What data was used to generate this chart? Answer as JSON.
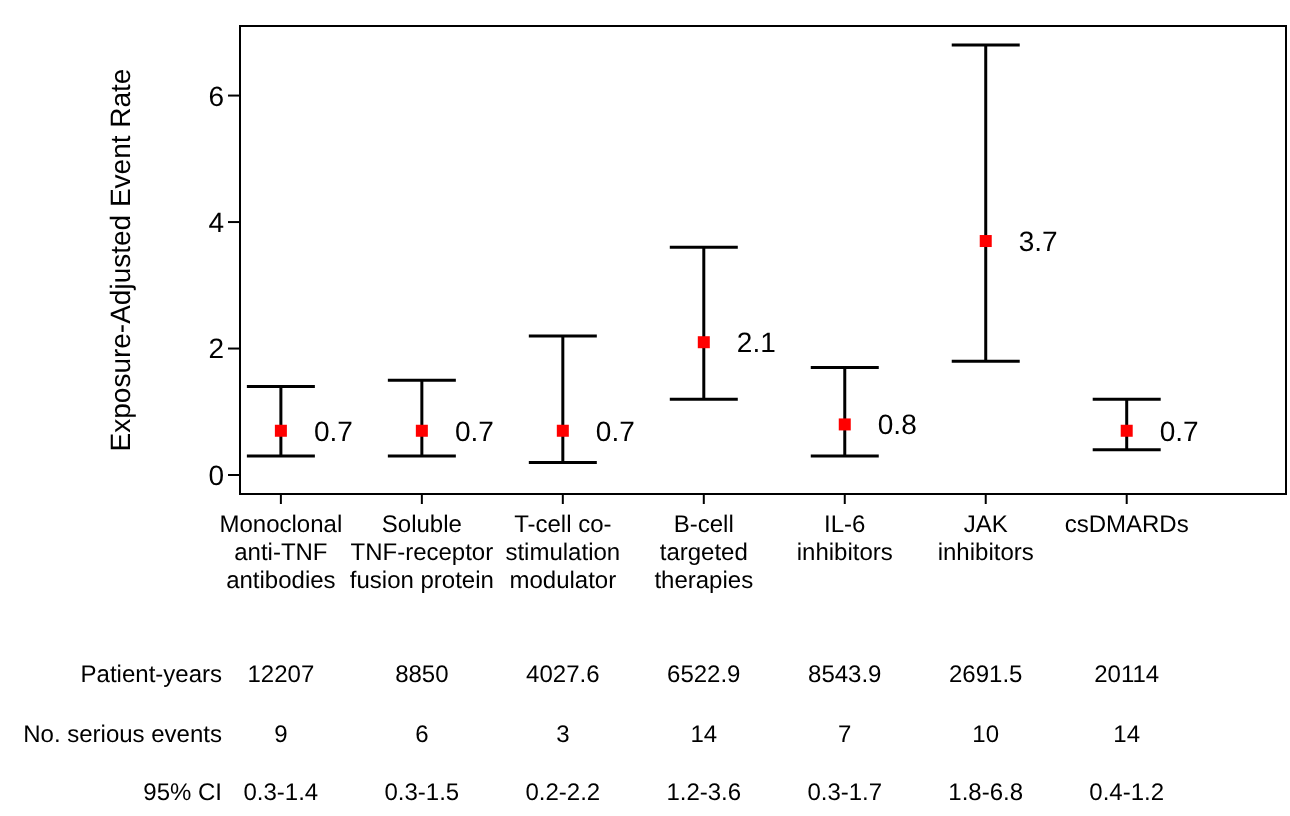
{
  "chart_data": {
    "type": "scatter",
    "ylabel": "Exposure-Adjusted Event Rate",
    "categories": [
      "Monoclonal\nanti-TNF\nantibodies",
      "Soluble\nTNF-receptor\nfusion protein",
      "T-cell co-\nstimulation\nmodulator",
      "B-cell\ntargeted\ntherapies",
      "IL-6\ninhibitors",
      "JAK\ninhibitors",
      "csDMARDs"
    ],
    "series": [
      {
        "color": "#ff0000",
        "values": [
          0.7,
          0.7,
          0.7,
          2.1,
          0.8,
          3.7,
          0.7
        ],
        "errors": [
          [
            0.3,
            1.4
          ],
          [
            0.3,
            1.5
          ],
          [
            0.2,
            2.2
          ],
          [
            1.2,
            3.6
          ],
          [
            0.3,
            1.7
          ],
          [
            1.8,
            6.8
          ],
          [
            0.4,
            1.2
          ]
        ]
      }
    ],
    "marker": "square",
    "data_labels": true,
    "ylim": [
      -0.3,
      7.1
    ],
    "yticks": [
      0,
      2,
      4,
      6
    ],
    "annotations": [
      "Patient-years",
      "12207",
      "8850",
      "4027.6",
      "6522.9",
      "8543.9",
      "2691.5",
      "20114",
      "No. serious events",
      "9",
      "6",
      "3",
      "14",
      "7",
      "10",
      "14",
      "95% CI",
      "0.3-1.4",
      "0.3-1.5",
      "0.2-2.2",
      "1.2-3.6",
      "0.3-1.7",
      "1.8-6.8",
      "0.4-1.2"
    ]
  }
}
